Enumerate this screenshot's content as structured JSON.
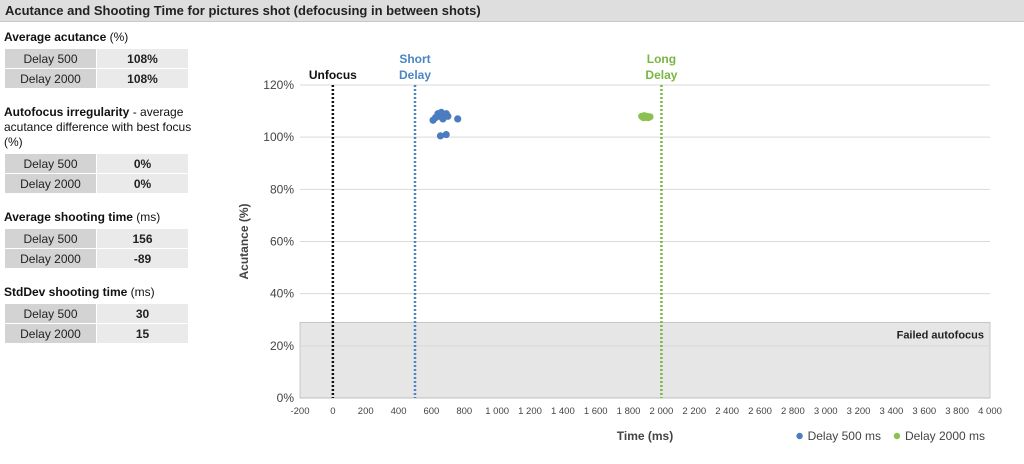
{
  "header": {
    "title": "Acutance and Shooting Time for pictures shot (defocusing in between shots)"
  },
  "stats": [
    {
      "title_bold": "Average acutance",
      "title_rest": " (%)",
      "rows": [
        {
          "label": "Delay 500",
          "value": "108%"
        },
        {
          "label": "Delay 2000",
          "value": "108%"
        }
      ]
    },
    {
      "title_bold": "Autofocus irregularity",
      "title_rest": " - average acutance difference with best focus (%)",
      "rows": [
        {
          "label": "Delay 500",
          "value": "0%"
        },
        {
          "label": "Delay 2000",
          "value": "0%"
        }
      ]
    },
    {
      "title_bold": "Average shooting time",
      "title_rest": " (ms)",
      "rows": [
        {
          "label": "Delay 500",
          "value": "156"
        },
        {
          "label": "Delay 2000",
          "value": "-89"
        }
      ]
    },
    {
      "title_bold": "StdDev shooting time",
      "title_rest": " (ms)",
      "rows": [
        {
          "label": "Delay 500",
          "value": "30"
        },
        {
          "label": "Delay 2000",
          "value": "15"
        }
      ]
    }
  ],
  "chart_data": {
    "type": "scatter",
    "xlabel": "Time (ms)",
    "ylabel": "Acutance (%)",
    "xlim": [
      -200,
      4000
    ],
    "ylim": [
      0,
      120
    ],
    "x_ticks": [
      -200,
      0,
      200,
      400,
      600,
      800,
      1000,
      1200,
      1400,
      1600,
      1800,
      2000,
      2200,
      2400,
      2600,
      2800,
      3000,
      3200,
      3400,
      3600,
      3800,
      4000
    ],
    "x_tick_labels": [
      "-200",
      "0",
      "200",
      "400",
      "600",
      "800",
      "1 000",
      "1 200",
      "1 400",
      "1 600",
      "1 800",
      "2 000",
      "2 200",
      "2 400",
      "2 600",
      "2 800",
      "3 000",
      "3 200",
      "3 400",
      "3 600",
      "3 800",
      "4 000"
    ],
    "y_ticks": [
      0,
      20,
      40,
      60,
      80,
      100,
      120
    ],
    "y_tick_labels": [
      "0%",
      "20%",
      "40%",
      "60%",
      "80%",
      "100%",
      "120%"
    ],
    "grid": true,
    "failed_zone": {
      "y_max": 29,
      "label": "Failed autofocus",
      "color": "#e6e6e6"
    },
    "reference_lines": [
      {
        "x": 0,
        "label": [
          "Unfocus"
        ],
        "color": "#111111"
      },
      {
        "x": 500,
        "label": [
          "Short",
          "Delay"
        ],
        "color": "#4a86c5"
      },
      {
        "x": 2000,
        "label": [
          "Long",
          "Delay"
        ],
        "color": "#79b643"
      }
    ],
    "series": [
      {
        "name": "Delay 500 ms",
        "color": "#4a7dc0",
        "points": [
          {
            "x": 610,
            "y": 106.5
          },
          {
            "x": 625,
            "y": 107.5
          },
          {
            "x": 640,
            "y": 109
          },
          {
            "x": 650,
            "y": 108
          },
          {
            "x": 660,
            "y": 109.5
          },
          {
            "x": 670,
            "y": 107
          },
          {
            "x": 680,
            "y": 108.5
          },
          {
            "x": 690,
            "y": 109
          },
          {
            "x": 700,
            "y": 108
          },
          {
            "x": 655,
            "y": 100.5
          },
          {
            "x": 690,
            "y": 101
          },
          {
            "x": 760,
            "y": 107
          }
        ]
      },
      {
        "name": "Delay 2000 ms",
        "color": "#8cc152",
        "points": [
          {
            "x": 1880,
            "y": 108
          },
          {
            "x": 1890,
            "y": 107.5
          },
          {
            "x": 1895,
            "y": 108.2
          },
          {
            "x": 1905,
            "y": 107.6
          },
          {
            "x": 1912,
            "y": 108
          },
          {
            "x": 1920,
            "y": 107.5
          },
          {
            "x": 1930,
            "y": 107.8
          }
        ]
      }
    ],
    "legend": {
      "placement": "bottom-right"
    }
  }
}
